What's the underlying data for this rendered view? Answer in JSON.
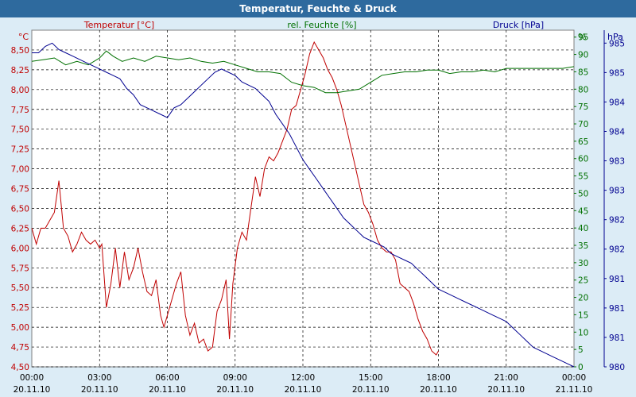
{
  "chart_data": {
    "type": "line",
    "title": "Temperatur, Feuchte & Druck",
    "colors": {
      "temperature": "#c00000",
      "humidity": "#007000",
      "pressure": "#000090",
      "title_bg": "#2e6a9e",
      "frame_bg": "#dcecf6"
    },
    "axes": {
      "temperature": {
        "label": "Temperatur [°C]",
        "unit": "°C",
        "ylim": [
          4.5,
          8.75
        ],
        "ticks": [
          "4,50",
          "4,75",
          "5,00",
          "5,25",
          "5,50",
          "5,75",
          "6,00",
          "6,25",
          "6,50",
          "6,75",
          "7,00",
          "7,25",
          "7,50",
          "7,75",
          "8,00",
          "8,25",
          "8,50"
        ]
      },
      "humidity": {
        "label": "rel. Feuchte [%]",
        "unit": "%",
        "ylim": [
          0,
          97
        ],
        "ticks": [
          "0",
          "5",
          "10",
          "15",
          "20",
          "25",
          "30",
          "35",
          "40",
          "45",
          "50",
          "55",
          "60",
          "65",
          "70",
          "75",
          "80",
          "85",
          "90",
          "95"
        ]
      },
      "pressure": {
        "label": "Druck [hPa]",
        "unit": "hPa",
        "ylim": [
          980.0,
          985.2
        ],
        "ticks": [
          "980",
          "981",
          "981",
          "981",
          "982",
          "982",
          "983",
          "983",
          "984",
          "984",
          "985",
          "985"
        ]
      }
    },
    "x_ticks": [
      {
        "time": "00:00",
        "date": "20.11.10"
      },
      {
        "time": "03:00",
        "date": "20.11.10"
      },
      {
        "time": "06:00",
        "date": "20.11.10"
      },
      {
        "time": "09:00",
        "date": "20.11.10"
      },
      {
        "time": "12:00",
        "date": "20.11.10"
      },
      {
        "time": "15:00",
        "date": "20.11.10"
      },
      {
        "time": "18:00",
        "date": "20.11.10"
      },
      {
        "time": "21:00",
        "date": "20.11.10"
      },
      {
        "time": "00:00",
        "date": "21.11.10"
      }
    ],
    "xlim_hours": [
      0,
      24
    ],
    "series": [
      {
        "name": "Temperatur [°C]",
        "axis": "temperature",
        "points": [
          [
            0,
            6.25
          ],
          [
            0.2,
            6.05
          ],
          [
            0.4,
            6.25
          ],
          [
            0.6,
            6.25
          ],
          [
            0.8,
            6.35
          ],
          [
            1.0,
            6.45
          ],
          [
            1.2,
            6.85
          ],
          [
            1.4,
            6.25
          ],
          [
            1.6,
            6.15
          ],
          [
            1.8,
            5.95
          ],
          [
            2.0,
            6.05
          ],
          [
            2.2,
            6.2
          ],
          [
            2.4,
            6.1
          ],
          [
            2.6,
            6.05
          ],
          [
            2.8,
            6.1
          ],
          [
            3.0,
            6.0
          ],
          [
            3.1,
            6.05
          ],
          [
            3.3,
            5.25
          ],
          [
            3.5,
            5.55
          ],
          [
            3.7,
            6.0
          ],
          [
            3.9,
            5.5
          ],
          [
            4.1,
            5.95
          ],
          [
            4.3,
            5.6
          ],
          [
            4.5,
            5.75
          ],
          [
            4.7,
            6.0
          ],
          [
            4.9,
            5.7
          ],
          [
            5.1,
            5.45
          ],
          [
            5.3,
            5.4
          ],
          [
            5.5,
            5.6
          ],
          [
            5.7,
            5.15
          ],
          [
            5.85,
            5.0
          ],
          [
            6.0,
            5.15
          ],
          [
            6.2,
            5.35
          ],
          [
            6.4,
            5.55
          ],
          [
            6.6,
            5.7
          ],
          [
            6.8,
            5.15
          ],
          [
            7.0,
            4.9
          ],
          [
            7.2,
            5.05
          ],
          [
            7.4,
            4.8
          ],
          [
            7.6,
            4.85
          ],
          [
            7.8,
            4.7
          ],
          [
            8.0,
            4.75
          ],
          [
            8.2,
            5.2
          ],
          [
            8.4,
            5.35
          ],
          [
            8.6,
            5.6
          ],
          [
            8.75,
            4.85
          ],
          [
            8.9,
            5.55
          ],
          [
            9.1,
            6.0
          ],
          [
            9.3,
            6.2
          ],
          [
            9.5,
            6.1
          ],
          [
            9.7,
            6.5
          ],
          [
            9.9,
            6.9
          ],
          [
            10.1,
            6.65
          ],
          [
            10.3,
            7.0
          ],
          [
            10.5,
            7.15
          ],
          [
            10.7,
            7.1
          ],
          [
            10.9,
            7.2
          ],
          [
            11.1,
            7.35
          ],
          [
            11.3,
            7.5
          ],
          [
            11.5,
            7.75
          ],
          [
            11.7,
            7.8
          ],
          [
            11.9,
            8.0
          ],
          [
            12.1,
            8.2
          ],
          [
            12.3,
            8.45
          ],
          [
            12.5,
            8.6
          ],
          [
            12.7,
            8.5
          ],
          [
            12.9,
            8.4
          ],
          [
            13.1,
            8.25
          ],
          [
            13.3,
            8.15
          ],
          [
            13.5,
            8.0
          ],
          [
            13.7,
            7.8
          ],
          [
            13.9,
            7.55
          ],
          [
            14.1,
            7.3
          ],
          [
            14.3,
            7.05
          ],
          [
            14.5,
            6.8
          ],
          [
            14.7,
            6.55
          ],
          [
            14.9,
            6.45
          ],
          [
            15.1,
            6.3
          ],
          [
            15.3,
            6.1
          ],
          [
            15.5,
            6.0
          ],
          [
            15.7,
            5.95
          ],
          [
            15.9,
            5.95
          ],
          [
            16.1,
            5.85
          ],
          [
            16.3,
            5.55
          ],
          [
            16.5,
            5.5
          ],
          [
            16.7,
            5.45
          ],
          [
            16.9,
            5.3
          ],
          [
            17.1,
            5.1
          ],
          [
            17.3,
            4.95
          ],
          [
            17.5,
            4.85
          ],
          [
            17.7,
            4.7
          ],
          [
            17.9,
            4.65
          ],
          [
            18.0,
            4.7
          ]
        ]
      },
      {
        "name": "rel. Feuchte [%]",
        "axis": "humidity",
        "points": [
          [
            0,
            88
          ],
          [
            0.5,
            88.5
          ],
          [
            1.0,
            89
          ],
          [
            1.5,
            87
          ],
          [
            2.0,
            88
          ],
          [
            2.5,
            87
          ],
          [
            3.0,
            89
          ],
          [
            3.3,
            91
          ],
          [
            3.6,
            89.5
          ],
          [
            4.0,
            88
          ],
          [
            4.5,
            89
          ],
          [
            5.0,
            88
          ],
          [
            5.5,
            89.5
          ],
          [
            6.0,
            89
          ],
          [
            6.5,
            88.5
          ],
          [
            7.0,
            89
          ],
          [
            7.5,
            88
          ],
          [
            8.0,
            87.5
          ],
          [
            8.5,
            88
          ],
          [
            9.0,
            87
          ],
          [
            9.5,
            86
          ],
          [
            10.0,
            85
          ],
          [
            10.5,
            85
          ],
          [
            11.0,
            84.5
          ],
          [
            11.5,
            82
          ],
          [
            12.0,
            81
          ],
          [
            12.5,
            80.5
          ],
          [
            13.0,
            79
          ],
          [
            13.5,
            79
          ],
          [
            14.0,
            79.5
          ],
          [
            14.5,
            80
          ],
          [
            15.0,
            82
          ],
          [
            15.5,
            84
          ],
          [
            16.0,
            84.5
          ],
          [
            16.5,
            85
          ],
          [
            17.0,
            85
          ],
          [
            17.5,
            85.5
          ],
          [
            18.0,
            85.5
          ],
          [
            18.5,
            84.5
          ],
          [
            19.0,
            85
          ],
          [
            19.5,
            85
          ],
          [
            20.0,
            85.5
          ],
          [
            20.5,
            85
          ],
          [
            21.0,
            86
          ],
          [
            21.5,
            86
          ],
          [
            22.0,
            86
          ],
          [
            22.5,
            86
          ],
          [
            23.0,
            86
          ],
          [
            23.5,
            86
          ],
          [
            24.0,
            86.5
          ]
        ]
      },
      {
        "name": "Druck [hPa]",
        "axis": "pressure",
        "points": [
          [
            0,
            984.85
          ],
          [
            0.3,
            984.85
          ],
          [
            0.6,
            984.95
          ],
          [
            0.9,
            985.0
          ],
          [
            1.2,
            984.9
          ],
          [
            1.5,
            984.85
          ],
          [
            1.8,
            984.8
          ],
          [
            2.1,
            984.75
          ],
          [
            2.4,
            984.7
          ],
          [
            2.7,
            984.65
          ],
          [
            3.0,
            984.6
          ],
          [
            3.3,
            984.55
          ],
          [
            3.6,
            984.5
          ],
          [
            3.9,
            984.45
          ],
          [
            4.2,
            984.3
          ],
          [
            4.5,
            984.2
          ],
          [
            4.8,
            984.05
          ],
          [
            5.1,
            984.0
          ],
          [
            5.4,
            983.95
          ],
          [
            5.7,
            983.9
          ],
          [
            6.0,
            983.85
          ],
          [
            6.3,
            984.0
          ],
          [
            6.6,
            984.05
          ],
          [
            6.9,
            984.15
          ],
          [
            7.2,
            984.25
          ],
          [
            7.5,
            984.35
          ],
          [
            7.8,
            984.45
          ],
          [
            8.1,
            984.55
          ],
          [
            8.4,
            984.6
          ],
          [
            8.7,
            984.55
          ],
          [
            9.0,
            984.5
          ],
          [
            9.3,
            984.4
          ],
          [
            9.6,
            984.35
          ],
          [
            9.9,
            984.3
          ],
          [
            10.2,
            984.2
          ],
          [
            10.5,
            984.1
          ],
          [
            10.8,
            983.9
          ],
          [
            11.1,
            983.75
          ],
          [
            11.4,
            983.6
          ],
          [
            11.7,
            983.4
          ],
          [
            12.0,
            983.2
          ],
          [
            12.3,
            983.05
          ],
          [
            12.6,
            982.9
          ],
          [
            12.9,
            982.75
          ],
          [
            13.2,
            982.6
          ],
          [
            13.5,
            982.45
          ],
          [
            13.8,
            982.3
          ],
          [
            14.1,
            982.2
          ],
          [
            14.4,
            982.1
          ],
          [
            14.7,
            982.0
          ],
          [
            15.0,
            981.95
          ],
          [
            15.3,
            981.9
          ],
          [
            15.6,
            981.85
          ],
          [
            15.9,
            981.75
          ],
          [
            16.2,
            981.7
          ],
          [
            16.5,
            981.65
          ],
          [
            16.8,
            981.6
          ],
          [
            17.1,
            981.5
          ],
          [
            17.4,
            981.4
          ],
          [
            17.7,
            981.3
          ],
          [
            18.0,
            981.2
          ],
          [
            18.3,
            981.15
          ],
          [
            18.6,
            981.1
          ],
          [
            18.9,
            981.05
          ],
          [
            19.2,
            981.0
          ],
          [
            19.5,
            980.95
          ],
          [
            19.8,
            980.9
          ],
          [
            20.1,
            980.85
          ],
          [
            20.4,
            980.8
          ],
          [
            20.7,
            980.75
          ],
          [
            21.0,
            980.7
          ],
          [
            21.3,
            980.6
          ],
          [
            21.6,
            980.5
          ],
          [
            21.9,
            980.4
          ],
          [
            22.2,
            980.3
          ],
          [
            22.5,
            980.25
          ],
          [
            22.8,
            980.2
          ],
          [
            23.1,
            980.15
          ],
          [
            23.4,
            980.1
          ],
          [
            23.7,
            980.05
          ],
          [
            24.0,
            980.0
          ]
        ]
      }
    ]
  }
}
